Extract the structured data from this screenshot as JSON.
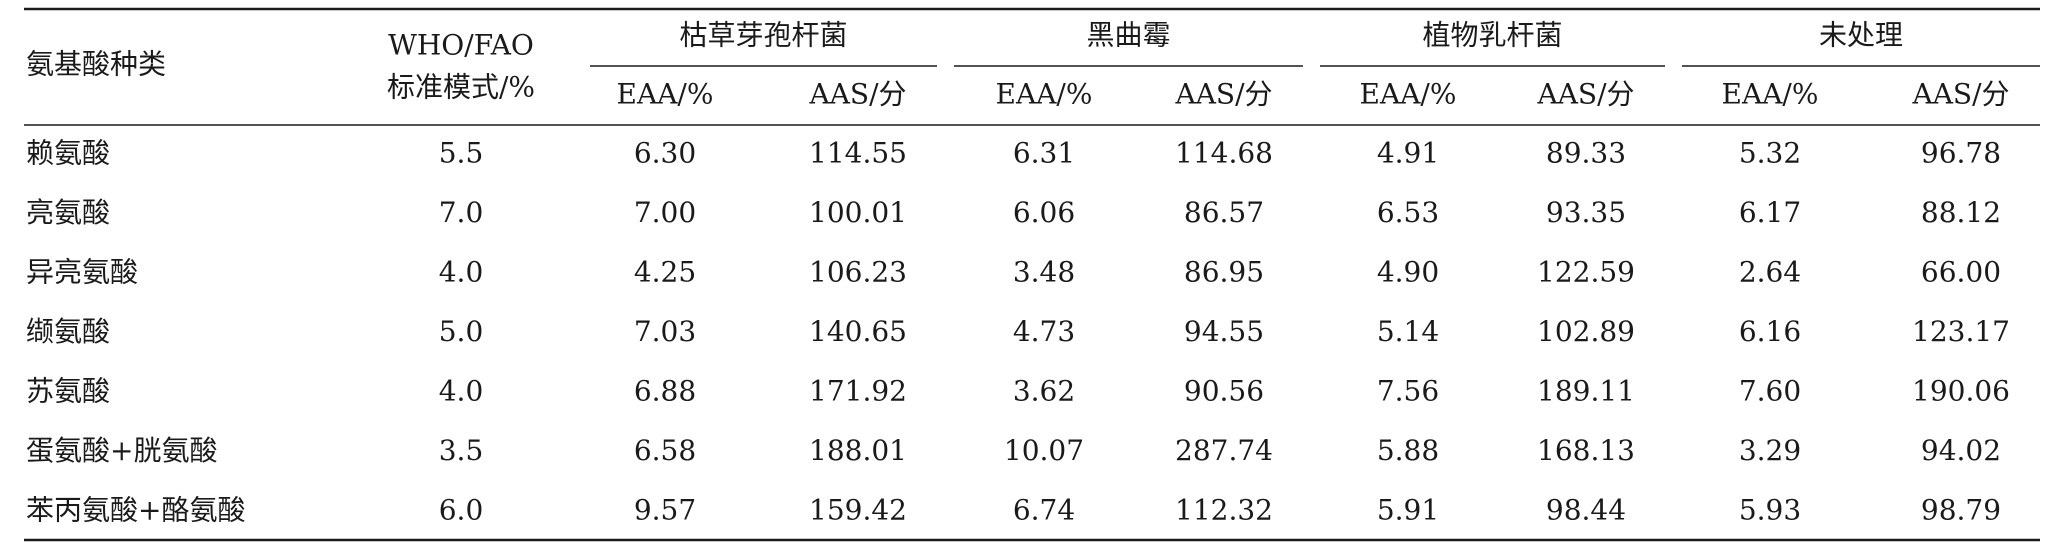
{
  "table": {
    "header": {
      "row_label": "氨基酸种类",
      "standard": [
        "WHO/FAO",
        "标准模式/%"
      ],
      "groups": [
        {
          "name": "枯草芽孢杆菌",
          "columns": [
            "EAA/%",
            "AAS/分"
          ]
        },
        {
          "name": "黑曲霉",
          "columns": [
            "EAA/%",
            "AAS/分"
          ]
        },
        {
          "name": "植物乳杆菌",
          "columns": [
            "EAA/%",
            "AAS/分"
          ]
        },
        {
          "name": "未处理",
          "columns": [
            "EAA/%",
            "AAS/分"
          ]
        }
      ]
    },
    "rows": [
      [
        "赖氨酸",
        "5.5",
        "6.30",
        "114.55",
        "6.31",
        "114.68",
        "4.91",
        "89.33",
        "5.32",
        "96.78"
      ],
      [
        "亮氨酸",
        "7.0",
        "7.00",
        "100.01",
        "6.06",
        "86.57",
        "6.53",
        "93.35",
        "6.17",
        "88.12"
      ],
      [
        "异亮氨酸",
        "4.0",
        "4.25",
        "106.23",
        "3.48",
        "86.95",
        "4.90",
        "122.59",
        "2.64",
        "66.00"
      ],
      [
        "缬氨酸",
        "5.0",
        "7.03",
        "140.65",
        "4.73",
        "94.55",
        "5.14",
        "102.89",
        "6.16",
        "123.17"
      ],
      [
        "苏氨酸",
        "4.0",
        "6.88",
        "171.92",
        "3.62",
        "90.56",
        "7.56",
        "189.11",
        "7.60",
        "190.06"
      ],
      [
        "蛋氨酸+胱氨酸",
        "3.5",
        "6.58",
        "188.01",
        "10.07",
        "287.74",
        "5.88",
        "168.13",
        "3.29",
        "94.02"
      ],
      [
        "苯丙氨酸+酪氨酸",
        "6.0",
        "9.57",
        "159.42",
        "6.74",
        "112.32",
        "5.91",
        "98.44",
        "5.93",
        "98.79"
      ]
    ]
  }
}
